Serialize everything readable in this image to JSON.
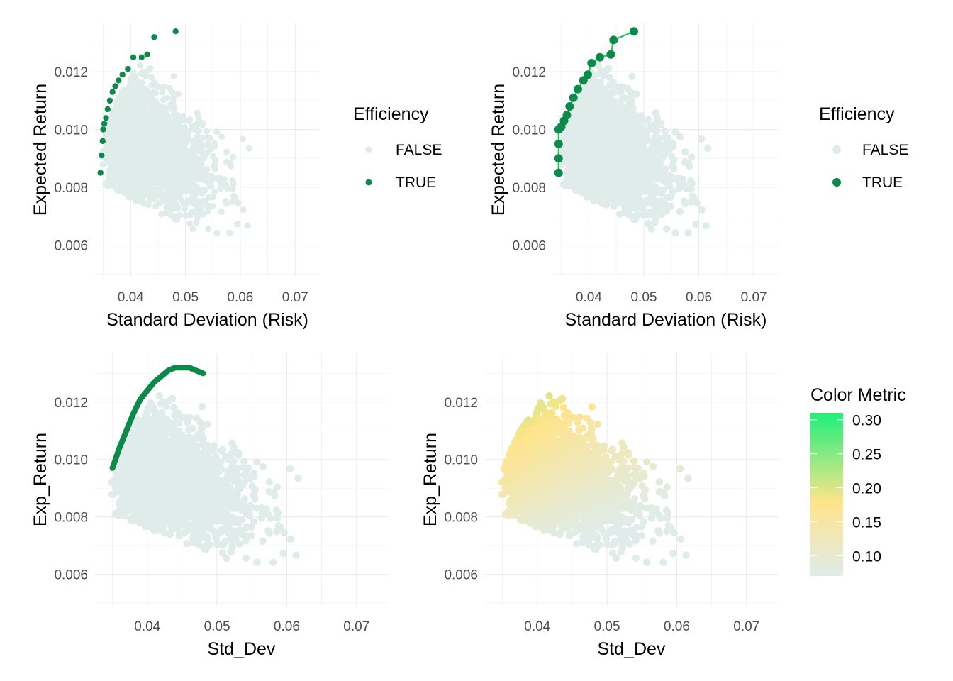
{
  "colors": {
    "false_point": "#dfecea",
    "true_point": "#0b8a4a",
    "frontier_line": "#1ec864",
    "gradient_low": "#dfecea",
    "gradient_mid": "#ffe48a",
    "gradient_high": "#1ef07a"
  },
  "chart_data": [
    {
      "type": "scatter",
      "title": "",
      "xlabel": "Standard Deviation (Risk)",
      "ylabel": "Expected Return",
      "xlim": [
        0.0335,
        0.0745
      ],
      "ylim": [
        0.0049,
        0.0137
      ],
      "x_ticks": [
        "0.04",
        "0.05",
        "0.06",
        "0.07"
      ],
      "y_ticks": [
        "0.006",
        "0.008",
        "0.010",
        "0.012"
      ],
      "grid": true,
      "legend": {
        "title": "Efficiency",
        "position": "right",
        "items": [
          "FALSE",
          "TRUE"
        ]
      },
      "series": [
        {
          "name": "FALSE",
          "description": "dense cloud of random portfolios",
          "extent_x": [
            0.0345,
            0.0735
          ],
          "extent_y": [
            0.0053,
            0.0128
          ]
        },
        {
          "name": "TRUE",
          "points": [
            [
              0.0345,
              0.0085
            ],
            [
              0.0347,
              0.0091
            ],
            [
              0.0349,
              0.0096
            ],
            [
              0.035,
              0.01
            ],
            [
              0.0352,
              0.0102
            ],
            [
              0.0355,
              0.0104
            ],
            [
              0.0358,
              0.0107
            ],
            [
              0.0362,
              0.011
            ],
            [
              0.0367,
              0.0113
            ],
            [
              0.0372,
              0.0115
            ],
            [
              0.0378,
              0.0117
            ],
            [
              0.0385,
              0.0119
            ],
            [
              0.0395,
              0.0121
            ],
            [
              0.0405,
              0.0125
            ],
            [
              0.042,
              0.0125
            ],
            [
              0.043,
              0.0126
            ],
            [
              0.0443,
              0.0132
            ],
            [
              0.0482,
              0.0134
            ]
          ]
        }
      ]
    },
    {
      "type": "scatter",
      "title": "",
      "xlabel": "Standard Deviation (Risk)",
      "ylabel": "Expected Return",
      "xlim": [
        0.0335,
        0.0745
      ],
      "ylim": [
        0.0049,
        0.0137
      ],
      "x_ticks": [
        "0.04",
        "0.05",
        "0.06",
        "0.07"
      ],
      "y_ticks": [
        "0.006",
        "0.008",
        "0.010",
        "0.012"
      ],
      "grid": true,
      "legend": {
        "title": "Efficiency",
        "position": "right",
        "items": [
          "FALSE",
          "TRUE"
        ]
      },
      "series": [
        {
          "name": "FALSE",
          "description": "dense cloud of random portfolios",
          "extent_x": [
            0.0345,
            0.0735
          ],
          "extent_y": [
            0.0053,
            0.0128
          ]
        },
        {
          "name": "TRUE",
          "connected": true,
          "points": [
            [
              0.0345,
              0.0085
            ],
            [
              0.0345,
              0.009
            ],
            [
              0.0345,
              0.0095
            ],
            [
              0.0345,
              0.01
            ],
            [
              0.035,
              0.0101
            ],
            [
              0.0355,
              0.0103
            ],
            [
              0.036,
              0.0105
            ],
            [
              0.0365,
              0.0108
            ],
            [
              0.0372,
              0.0111
            ],
            [
              0.038,
              0.0114
            ],
            [
              0.039,
              0.0117
            ],
            [
              0.0398,
              0.0119
            ],
            [
              0.0405,
              0.0123
            ],
            [
              0.042,
              0.0125
            ],
            [
              0.044,
              0.0126
            ],
            [
              0.0445,
              0.0131
            ],
            [
              0.0482,
              0.0134
            ]
          ]
        }
      ]
    },
    {
      "type": "scatter",
      "title": "",
      "xlabel": "Std_Dev",
      "ylabel": "Exp_Return",
      "xlim": [
        0.0325,
        0.0745
      ],
      "ylim": [
        0.0049,
        0.0137
      ],
      "x_ticks": [
        "0.04",
        "0.05",
        "0.06",
        "0.07"
      ],
      "y_ticks": [
        "0.006",
        "0.008",
        "0.010",
        "0.012"
      ],
      "grid": true,
      "series": [
        {
          "name": "portfolios",
          "description": "dense cloud of random portfolios",
          "extent_x": [
            0.0345,
            0.0735
          ],
          "extent_y": [
            0.0053,
            0.0134
          ]
        },
        {
          "name": "frontier",
          "type": "line",
          "points": [
            [
              0.035,
              0.0097
            ],
            [
              0.036,
              0.0104
            ],
            [
              0.037,
              0.011
            ],
            [
              0.038,
              0.0116
            ],
            [
              0.039,
              0.0121
            ],
            [
              0.04,
              0.0124
            ],
            [
              0.041,
              0.0127
            ],
            [
              0.042,
              0.0129
            ],
            [
              0.043,
              0.0131
            ],
            [
              0.044,
              0.0132
            ],
            [
              0.045,
              0.0132
            ],
            [
              0.046,
              0.0132
            ],
            [
              0.047,
              0.0131
            ],
            [
              0.048,
              0.013
            ]
          ]
        }
      ]
    },
    {
      "type": "scatter",
      "title": "",
      "xlabel": "Std_Dev",
      "ylabel": "Exp_Return",
      "xlim": [
        0.0325,
        0.0745
      ],
      "ylim": [
        0.0049,
        0.0137
      ],
      "x_ticks": [
        "0.04",
        "0.05",
        "0.06",
        "0.07"
      ],
      "y_ticks": [
        "0.006",
        "0.008",
        "0.010",
        "0.012"
      ],
      "grid": true,
      "color_by": "Color Metric",
      "legend": {
        "title": "Color Metric",
        "position": "right",
        "type": "colorbar",
        "range": [
          0.07,
          0.31
        ],
        "ticks": [
          "0.10",
          "0.15",
          "0.20",
          "0.25",
          "0.30"
        ]
      },
      "series": [
        {
          "name": "portfolios",
          "description": "dense cloud coloured by ratio of return to risk",
          "extent_x": [
            0.0345,
            0.0735
          ],
          "extent_y": [
            0.0053,
            0.0133
          ]
        }
      ]
    }
  ]
}
